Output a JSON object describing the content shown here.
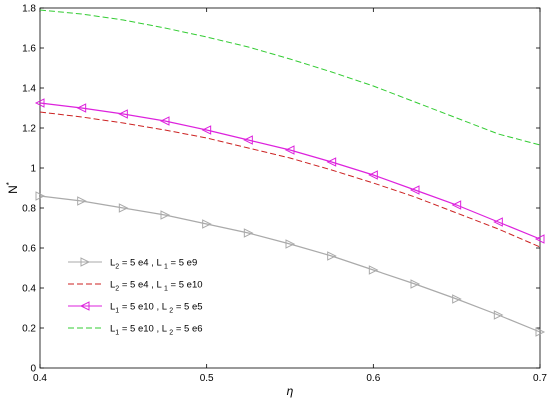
{
  "chart_data": {
    "type": "line",
    "xlabel": "η",
    "ylabel": "N",
    "ylabel_superscript": "*",
    "xlim": [
      0.4,
      0.7
    ],
    "ylim": [
      0,
      1.8
    ],
    "x_ticks": [
      0.4,
      0.5,
      0.6,
      0.7
    ],
    "x_tick_labels": [
      "0.4",
      "0.5",
      "0.6",
      "0.7"
    ],
    "y_ticks": [
      0,
      0.2,
      0.4,
      0.6,
      0.8,
      1.0,
      1.2,
      1.4,
      1.6,
      1.8
    ],
    "y_tick_labels": [
      "0",
      "0.2",
      "0.4",
      "0.6",
      "0.8",
      "1",
      "1.2",
      "1.4",
      "1.6",
      "1.8"
    ],
    "grid": false,
    "legend_position": "center-left",
    "series": [
      {
        "legend": [
          [
            "L",
            "2",
            " = 5 e4 , L "
          ],
          [
            "",
            "1",
            " = 5 e9"
          ]
        ],
        "color": "#aaaaaa",
        "style": "solid",
        "marker": "triangle-right",
        "x": [
          0.4,
          0.425,
          0.45,
          0.475,
          0.5,
          0.525,
          0.55,
          0.575,
          0.6,
          0.625,
          0.65,
          0.675,
          0.7
        ],
        "values": [
          0.86,
          0.835,
          0.8,
          0.765,
          0.72,
          0.675,
          0.62,
          0.56,
          0.49,
          0.42,
          0.345,
          0.265,
          0.18
        ]
      },
      {
        "legend": [
          [
            "L",
            "2",
            " = 5 e4 , L "
          ],
          [
            "",
            "1",
            " = 5 e10"
          ]
        ],
        "color": "#cc2222",
        "style": "dashed",
        "marker": "none",
        "x": [
          0.4,
          0.425,
          0.45,
          0.475,
          0.5,
          0.525,
          0.55,
          0.575,
          0.6,
          0.625,
          0.65,
          0.675,
          0.7
        ],
        "values": [
          1.28,
          1.255,
          1.225,
          1.19,
          1.15,
          1.1,
          1.05,
          0.99,
          0.925,
          0.855,
          0.775,
          0.695,
          0.605
        ]
      },
      {
        "legend": [
          [
            "L",
            "1",
            " = 5 e10 , L "
          ],
          [
            "",
            "2",
            " = 5 e5"
          ]
        ],
        "color": "#dd22dd",
        "style": "solid",
        "marker": "triangle-left",
        "x": [
          0.4,
          0.425,
          0.45,
          0.475,
          0.5,
          0.525,
          0.55,
          0.575,
          0.6,
          0.625,
          0.65,
          0.675,
          0.7
        ],
        "values": [
          1.325,
          1.3,
          1.27,
          1.235,
          1.19,
          1.14,
          1.09,
          1.03,
          0.965,
          0.89,
          0.815,
          0.73,
          0.645
        ]
      },
      {
        "legend": [
          [
            "L",
            "1",
            " = 5 e10 , L "
          ],
          [
            "",
            "2",
            " = 5 e6"
          ]
        ],
        "color": "#33cc33",
        "style": "dashed",
        "marker": "none",
        "x": [
          0.4,
          0.425,
          0.45,
          0.475,
          0.5,
          0.525,
          0.55,
          0.575,
          0.6,
          0.625,
          0.65,
          0.675,
          0.7
        ],
        "values": [
          1.79,
          1.77,
          1.74,
          1.7,
          1.655,
          1.605,
          1.545,
          1.48,
          1.41,
          1.33,
          1.25,
          1.17,
          1.115
        ]
      }
    ]
  }
}
